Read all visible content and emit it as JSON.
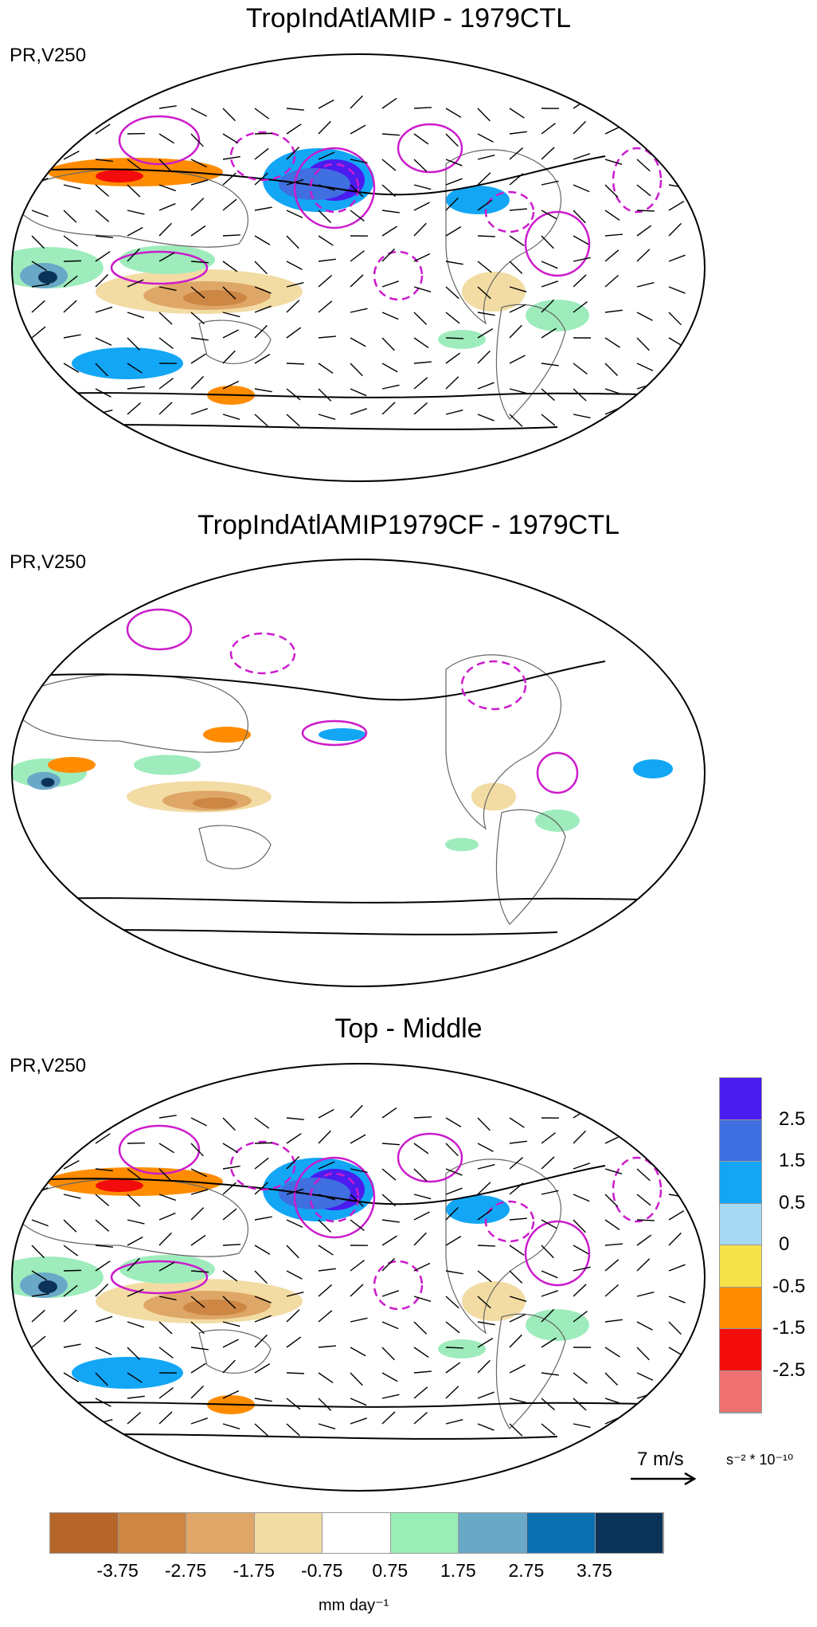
{
  "panels": [
    {
      "title": "TropIndAtlAMIP - 1979CTL",
      "sub": "PR,V250",
      "level": "strong"
    },
    {
      "title": "TropIndAtlAMIP1979CF - 1979CTL",
      "sub": "PR,V250",
      "level": "weak"
    },
    {
      "title": "Top - Middle",
      "sub": "PR,V250",
      "level": "strong"
    }
  ],
  "right_colorbar": {
    "labels": [
      "2.5",
      "1.5",
      "0.5",
      "0",
      "-0.5",
      "-1.5",
      "-2.5"
    ],
    "colors": [
      "#4a1cf0",
      "#3f6fe0",
      "#12a6f5",
      "#a6d8f2",
      "#f6e24a",
      "#ff8c00",
      "#f20c0c",
      "#ee7070"
    ],
    "units": "s⁻² * 10⁻¹⁰"
  },
  "bottom_colorbar": {
    "labels": [
      "-3.75",
      "-2.75",
      "-1.75",
      "-0.75",
      "0.75",
      "1.75",
      "2.75",
      "3.75"
    ],
    "colors": [
      "#b5652a",
      "#cd8643",
      "#dfa767",
      "#f2dca4",
      "#ffffff",
      "#99eeb8",
      "#6aa8c8",
      "#0b6fb0",
      "#0b3358"
    ],
    "units": "mm day⁻¹"
  },
  "vector_reference": "7 m/s",
  "colors": {
    "contour_pos": "#cc1bcc",
    "map_outline": "#000000",
    "coast": "#666666"
  }
}
